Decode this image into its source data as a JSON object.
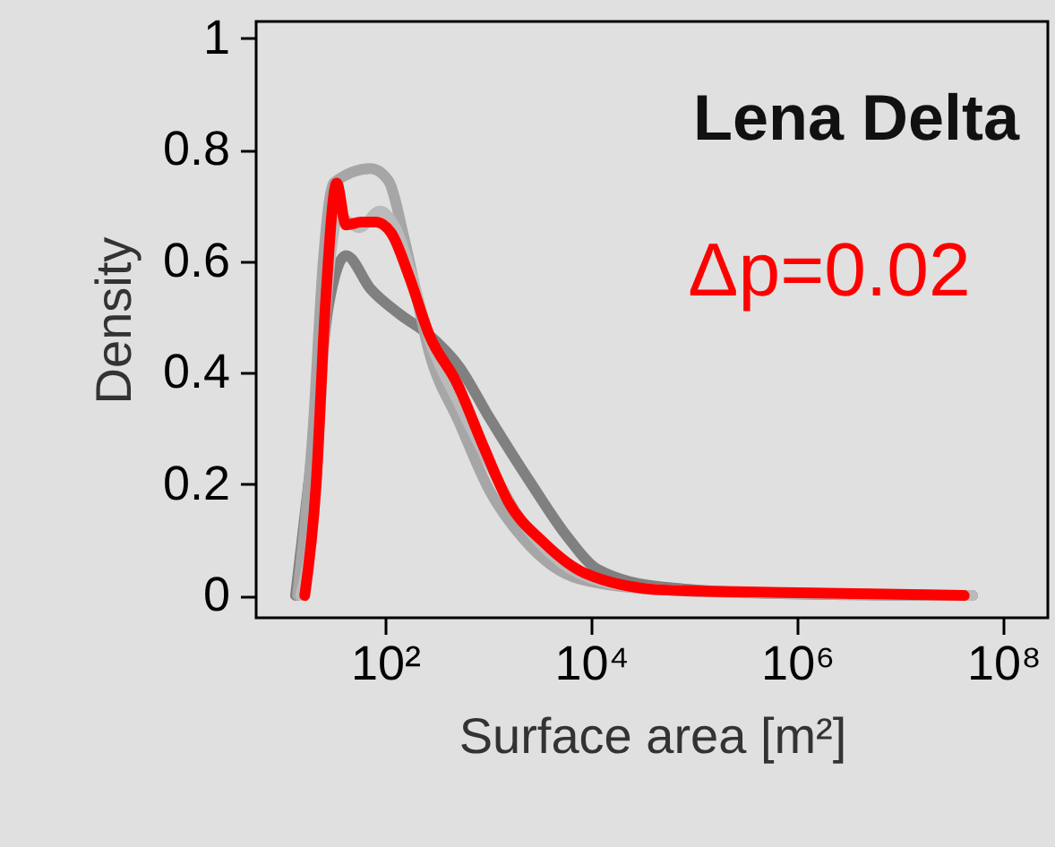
{
  "chart_data": {
    "type": "line",
    "xlabel": "Surface area [m²]",
    "ylabel": "Density",
    "log": "x",
    "xlim": [
      5.6,
      270000000
    ],
    "xticks": [
      {
        "value": 100,
        "label": "10²"
      },
      {
        "value": 10000,
        "label": "10⁴"
      },
      {
        "value": 1000000,
        "label": "10⁶"
      },
      {
        "value": 100000000,
        "label": "10⁸"
      }
    ],
    "ylim": [
      -0.04,
      1.03
    ],
    "yticks": [
      0,
      0.2,
      0.4,
      0.6,
      0.8,
      1
    ],
    "grid": false,
    "line_style": "solid",
    "marker": "none",
    "annotations": [
      "Lena Delta",
      "Δp=0.02"
    ],
    "series": [
      {
        "color": "#808080",
        "x": [
          13.5,
          20.9,
          28.2,
          41.7,
          72.4,
          138,
          269,
          525,
          1020,
          2630,
          5890,
          11500,
          50100,
          1000000,
          50100000
        ],
        "values": [
          0,
          0.3,
          0.52,
          0.61,
          0.55,
          0.505,
          0.467,
          0.41,
          0.32,
          0.2,
          0.105,
          0.047,
          0.015,
          0.003,
          0
        ]
      },
      {
        "color": "#a6a6a6",
        "x": [
          14.1,
          20,
          25.1,
          31.6,
          72.4,
          107,
          158,
          269,
          525,
          1020,
          2240,
          7590,
          50100,
          1000000,
          50100000
        ],
        "values": [
          0,
          0.3,
          0.6,
          0.74,
          0.766,
          0.745,
          0.63,
          0.435,
          0.31,
          0.19,
          0.1,
          0.03,
          0.01,
          0.003,
          0
        ]
      },
      {
        "color": "#bababa",
        "x": [
          15.1,
          21.4,
          26.3,
          35.5,
          56.2,
          89.1,
          126,
          178,
          269,
          501,
          1000,
          2000,
          5010,
          12600,
          50100,
          1000000,
          50100000
        ],
        "values": [
          0,
          0.2,
          0.5,
          0.68,
          0.66,
          0.69,
          0.66,
          0.58,
          0.46,
          0.35,
          0.24,
          0.14,
          0.06,
          0.025,
          0.01,
          0.004,
          0
        ]
      },
      {
        "color": "#ff0000",
        "x": [
          16.6,
          21.4,
          26.3,
          33.9,
          41.7,
          58.9,
          81.3,
          115,
          170,
          269,
          501,
          912,
          1550,
          3470,
          8710,
          50100,
          1000000,
          41700000
        ],
        "values": [
          0,
          0.2,
          0.52,
          0.74,
          0.665,
          0.67,
          0.67,
          0.65,
          0.574,
          0.467,
          0.38,
          0.265,
          0.17,
          0.095,
          0.04,
          0.01,
          0.005,
          0
        ]
      }
    ]
  }
}
